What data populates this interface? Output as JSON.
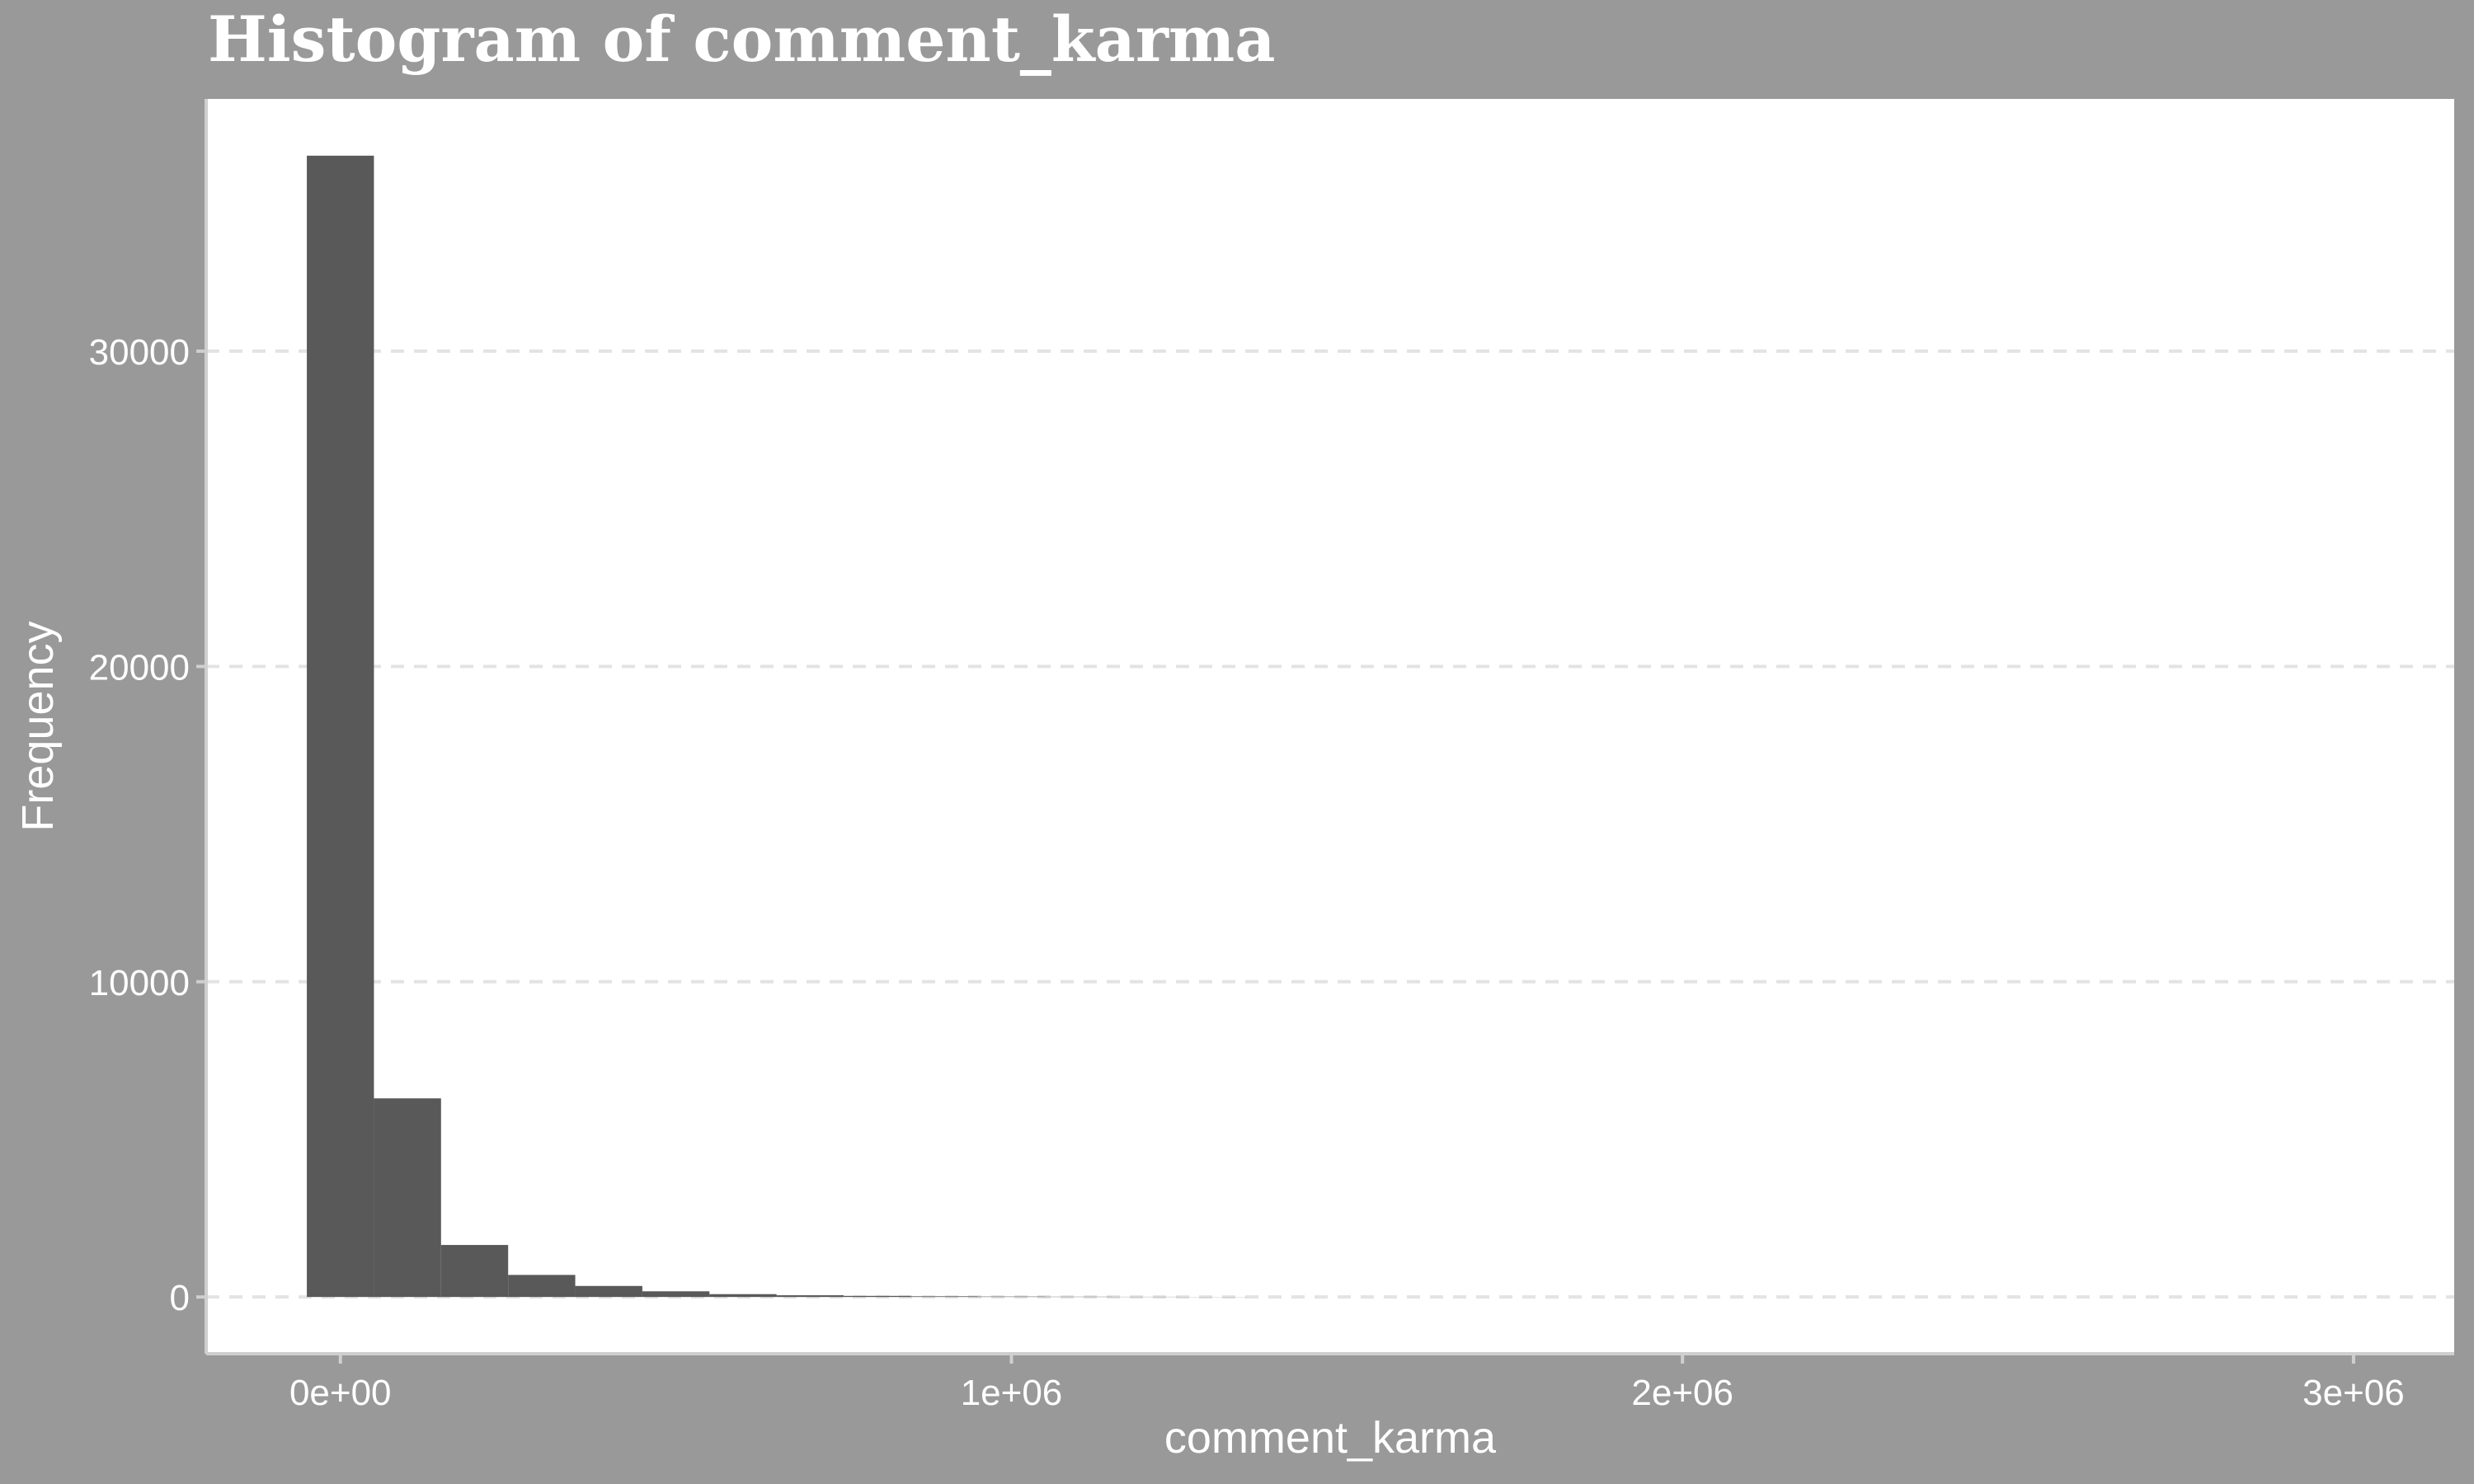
{
  "chart_data": {
    "type": "bar",
    "title": "Histogram of comment_karma",
    "xlabel": "comment_karma",
    "ylabel": "Frequency",
    "bins": [
      {
        "x0": -50000,
        "x1": 50000,
        "count": 36200
      },
      {
        "x0": 50000,
        "x1": 150000,
        "count": 6300
      },
      {
        "x0": 150000,
        "x1": 250000,
        "count": 1650
      },
      {
        "x0": 250000,
        "x1": 350000,
        "count": 700
      },
      {
        "x0": 350000,
        "x1": 450000,
        "count": 350
      },
      {
        "x0": 450000,
        "x1": 550000,
        "count": 180
      },
      {
        "x0": 550000,
        "x1": 650000,
        "count": 90
      },
      {
        "x0": 650000,
        "x1": 750000,
        "count": 55
      },
      {
        "x0": 750000,
        "x1": 850000,
        "count": 35
      },
      {
        "x0": 850000,
        "x1": 950000,
        "count": 22
      },
      {
        "x0": 950000,
        "x1": 1050000,
        "count": 14
      },
      {
        "x0": 1050000,
        "x1": 1150000,
        "count": 9
      },
      {
        "x0": 1150000,
        "x1": 1250000,
        "count": 6
      },
      {
        "x0": 1250000,
        "x1": 1350000,
        "count": 4
      }
    ],
    "xlim": [
      -200000,
      3150000
    ],
    "ylim": [
      -1800,
      38000
    ],
    "x_ticks": [
      {
        "value": 0,
        "label": "0e+00"
      },
      {
        "value": 1000000,
        "label": "1e+06"
      },
      {
        "value": 2000000,
        "label": "2e+06"
      },
      {
        "value": 3000000,
        "label": "3e+06"
      }
    ],
    "y_ticks": [
      {
        "value": 0,
        "label": "0"
      },
      {
        "value": 10000,
        "label": "10000"
      },
      {
        "value": 20000,
        "label": "20000"
      },
      {
        "value": 30000,
        "label": "30000"
      }
    ],
    "grid": "horizontal dashed",
    "colors": {
      "background": "#999999",
      "panel": "#ffffff",
      "bar": "#595959",
      "grid": "#e3e3e3",
      "text": "#ffffff",
      "axis_line": "#cfcfcf"
    }
  }
}
